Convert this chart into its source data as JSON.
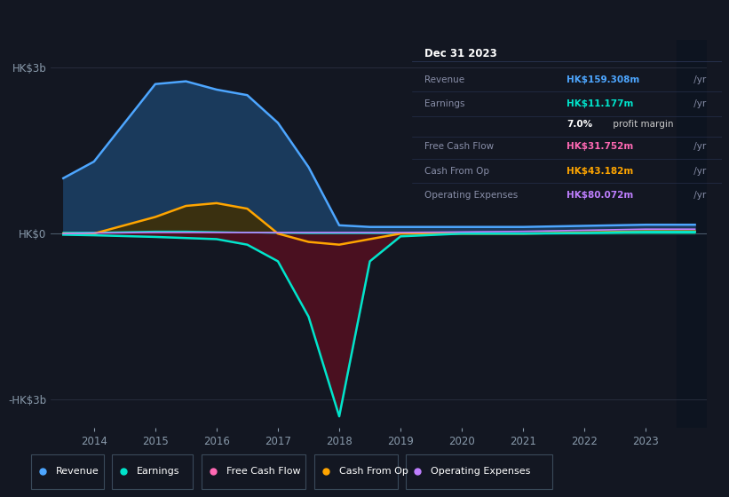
{
  "background_color": "#131722",
  "plot_bg_color": "#131722",
  "years": [
    2013.5,
    2014,
    2015,
    2015.5,
    2016,
    2016.5,
    2017,
    2017.5,
    2018,
    2018.5,
    2019,
    2020,
    2021,
    2022,
    2023,
    2023.8
  ],
  "revenue": [
    1.0,
    1.3,
    2.7,
    2.75,
    2.6,
    2.5,
    2.0,
    1.2,
    0.15,
    0.12,
    0.12,
    0.12,
    0.12,
    0.14,
    0.16,
    0.16
  ],
  "earnings": [
    0.02,
    0.02,
    0.04,
    0.04,
    0.03,
    0.02,
    0.01,
    0.005,
    0.005,
    0.005,
    0.005,
    0.005,
    0.005,
    0.007,
    0.011,
    0.011
  ],
  "free_cash_flow": [
    -0.02,
    -0.03,
    -0.06,
    -0.08,
    -0.1,
    -0.2,
    -0.5,
    -1.5,
    -3.3,
    -0.5,
    -0.05,
    0.0,
    0.0,
    0.01,
    0.03,
    0.03
  ],
  "cash_from_op": [
    0.0,
    0.0,
    0.3,
    0.5,
    0.55,
    0.45,
    0.0,
    -0.15,
    -0.2,
    -0.1,
    0.0,
    0.0,
    0.0,
    0.02,
    0.04,
    0.04
  ],
  "operating_expenses": [
    0.0,
    0.01,
    0.02,
    0.02,
    0.02,
    0.02,
    0.02,
    0.02,
    0.02,
    0.02,
    0.02,
    0.03,
    0.04,
    0.06,
    0.08,
    0.08
  ],
  "revenue_line_color": "#4da6ff",
  "revenue_fill_color": "#1a3a5c",
  "earnings_line_color": "#00e5cc",
  "fcf_line_color": "#00e5cc",
  "fcf_fill_neg_color": "#4a1020",
  "cashop_line_color": "#ffa500",
  "cashop_fill_pos_color": "#3a3010",
  "cashop_fill_neg_color": "#2a1a08",
  "opex_line_color": "#bf7fff",
  "dark_panel_color": "#0d1420",
  "grid_color": "#2a3040",
  "tick_color": "#8899aa",
  "ylim": [
    -3.5,
    3.5
  ],
  "xlim_left": 2013.3,
  "xlim_right": 2024.0,
  "xticks": [
    2014,
    2015,
    2016,
    2017,
    2018,
    2019,
    2020,
    2021,
    2022,
    2023
  ],
  "yticks": [
    -3,
    0,
    3
  ],
  "ytick_labels": [
    "-HK$3b",
    "HK$0",
    "HK$3b"
  ],
  "info_title": "Dec 31 2023",
  "info_rows": [
    {
      "label": "Revenue",
      "value": "HK$159.308m",
      "suffix": " /yr",
      "vcolor": "#4da6ff"
    },
    {
      "label": "Earnings",
      "value": "HK$11.177m",
      "suffix": " /yr",
      "vcolor": "#00e5cc"
    },
    {
      "label": "",
      "value": "7.0%",
      "suffix": " profit margin",
      "vcolor": "#ffffff",
      "bold": true
    },
    {
      "label": "Free Cash Flow",
      "value": "HK$31.752m",
      "suffix": " /yr",
      "vcolor": "#ff69b4"
    },
    {
      "label": "Cash From Op",
      "value": "HK$43.182m",
      "suffix": " /yr",
      "vcolor": "#ffa500"
    },
    {
      "label": "Operating Expenses",
      "value": "HK$80.072m",
      "suffix": " /yr",
      "vcolor": "#bf7fff"
    }
  ],
  "legend_items": [
    {
      "label": "Revenue",
      "color": "#4da6ff"
    },
    {
      "label": "Earnings",
      "color": "#00e5cc"
    },
    {
      "label": "Free Cash Flow",
      "color": "#ff69b4"
    },
    {
      "label": "Cash From Op",
      "color": "#ffa500"
    },
    {
      "label": "Operating Expenses",
      "color": "#bf7fff"
    }
  ]
}
